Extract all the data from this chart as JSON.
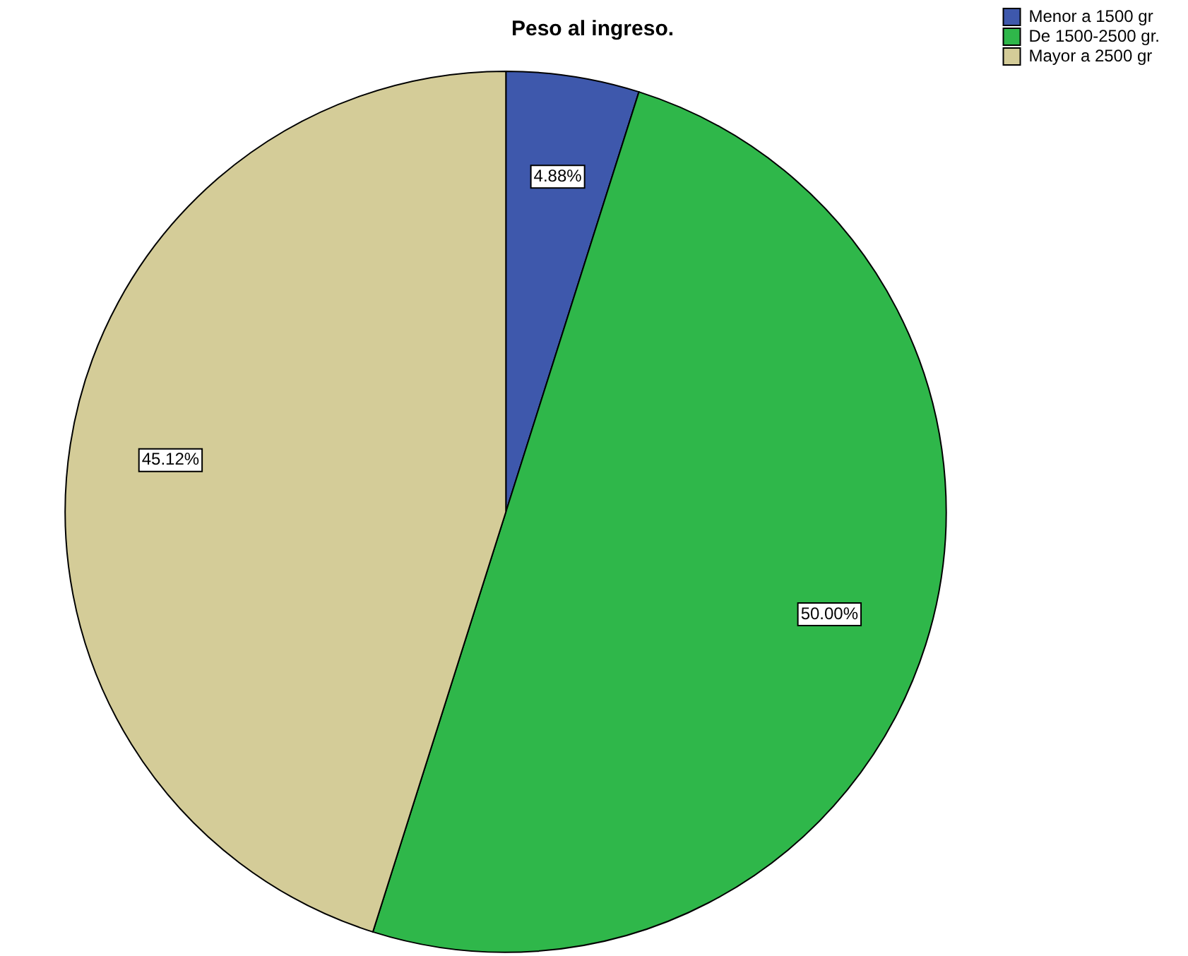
{
  "chart_data": {
    "type": "pie",
    "title": "Peso al ingreso.",
    "categories": [
      "Menor a 1500 gr",
      "De 1500-2500 gr.",
      "Mayor a 2500 gr"
    ],
    "values": [
      4.88,
      50.0,
      45.12
    ],
    "colors": [
      "#3e58ac",
      "#2fb74a",
      "#d4cc98"
    ],
    "value_labels": [
      "4.88%",
      "50.00%",
      "45.12%"
    ],
    "legend": "top right"
  }
}
